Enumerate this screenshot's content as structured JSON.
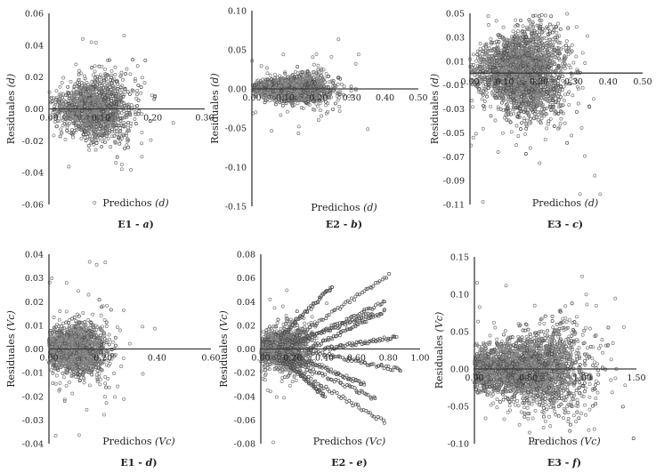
{
  "chart_data": [
    {
      "id": "p1",
      "type": "scatter",
      "ylabel_main": "Residuales",
      "ylabel_unit": "(d)",
      "xlabel_main": "Predichos",
      "xlabel_unit": "(d)",
      "caption_main": "E1 - ",
      "caption_letter": "a",
      "yticks": [
        "0.06",
        "0.04",
        "0.02",
        "0.00",
        "-0.02",
        "-0.04",
        "-0.06"
      ],
      "xticks": [
        "0.00",
        "0.10",
        "0.20",
        "0.30"
      ],
      "ylim": [
        -0.06,
        0.06
      ],
      "xlim": [
        0,
        0.3
      ],
      "cloud": {
        "n": 1400,
        "x_center": 0.09,
        "x_spread": 0.035,
        "y_spread": 0.009,
        "outliers": 30,
        "seed": 11
      }
    },
    {
      "id": "p2",
      "type": "scatter",
      "ylabel_main": "Residuales",
      "ylabel_unit": "(d)",
      "xlabel_main": "Predichos",
      "xlabel_unit": "(d)",
      "caption_main": "E2 - ",
      "caption_letter": "b",
      "yticks": [
        "0.10",
        "0.05",
        "0.00",
        "-0.05",
        "-0.10",
        "-0.15"
      ],
      "xticks": [
        "0.00",
        "0.10",
        "0.20",
        "0.30",
        "0.40",
        "0.50"
      ],
      "ylim": [
        -0.15,
        0.1
      ],
      "xlim": [
        0,
        0.5
      ],
      "cloud": {
        "n": 1800,
        "x_center": 0.12,
        "x_spread": 0.055,
        "y_spread": 0.008,
        "outliers": 45,
        "seed": 23
      }
    },
    {
      "id": "p3",
      "type": "scatter",
      "ylabel_main": "Residuales",
      "ylabel_unit": "(d)",
      "xlabel_main": "Predichos",
      "xlabel_unit": "(d)",
      "caption_main": "E3 - ",
      "caption_letter": "c",
      "yticks": [
        "0.05",
        "0.03",
        "0.01",
        "-0.01",
        "-0.03",
        "-0.05",
        "-0.07",
        "-0.09",
        "-0.11"
      ],
      "xticks": [
        "0.00",
        "0.10",
        "0.20",
        "0.30",
        "0.40",
        "0.50"
      ],
      "ylim": [
        -0.11,
        0.05
      ],
      "xlim": [
        0,
        0.5
      ],
      "cloud": {
        "n": 2600,
        "x_center": 0.15,
        "x_spread": 0.06,
        "y_spread": 0.016,
        "outliers": 60,
        "seed": 37
      }
    },
    {
      "id": "p4",
      "type": "scatter",
      "ylabel_main": "Residuales",
      "ylabel_unit": "(Vc)",
      "xlabel_main": "Predichos",
      "xlabel_unit": "(Vc)",
      "caption_main": "E1 - ",
      "caption_letter": "d",
      "yticks": [
        "0.04",
        "0.03",
        "0.02",
        "0.01",
        "0.00",
        "-0.01",
        "-0.02",
        "-0.03",
        "-0.04"
      ],
      "xticks": [
        "0.00",
        "0.20",
        "0.40",
        "0.60"
      ],
      "ylim": [
        -0.04,
        0.04
      ],
      "xlim": [
        0,
        0.6
      ],
      "cloud": {
        "n": 1500,
        "x_center": 0.09,
        "x_spread": 0.06,
        "y_spread": 0.006,
        "outliers": 80,
        "seed": 41
      }
    },
    {
      "id": "p5",
      "type": "scatter",
      "ylabel_main": "Residuales",
      "ylabel_unit": "(Vc)",
      "xlabel_main": "Predichos",
      "xlabel_unit": "(Vc)",
      "caption_main": "E2 - ",
      "caption_letter": "e",
      "yticks": [
        "0.08",
        "0.06",
        "0.04",
        "0.02",
        "0.00",
        "-0.02",
        "-0.04",
        "-0.06",
        "-0.08"
      ],
      "xticks": [
        "0.00",
        "0.20",
        "0.40",
        "0.60",
        "0.80",
        "1.00"
      ],
      "ylim": [
        -0.08,
        0.08
      ],
      "xlim": [
        0,
        1.0
      ],
      "cloud": {
        "n": 1500,
        "x_center": 0.14,
        "x_spread": 0.08,
        "y_spread": 0.01,
        "outliers": 40,
        "seed": 53
      },
      "streaks": [
        {
          "x0": 0.1,
          "y0": 0.0,
          "x1": 0.8,
          "y1": 0.062
        },
        {
          "x0": 0.15,
          "y0": 0.0,
          "x1": 0.78,
          "y1": 0.04
        },
        {
          "x0": 0.2,
          "y0": 0.005,
          "x1": 0.7,
          "y1": 0.03
        },
        {
          "x0": 0.12,
          "y0": 0.01,
          "x1": 0.45,
          "y1": 0.053
        },
        {
          "x0": 0.3,
          "y0": 0.0,
          "x1": 0.78,
          "y1": 0.032
        },
        {
          "x0": 0.4,
          "y0": 0.0,
          "x1": 0.85,
          "y1": 0.01
        },
        {
          "x0": 0.05,
          "y0": -0.005,
          "x1": 0.78,
          "y1": -0.062
        },
        {
          "x0": 0.1,
          "y0": -0.005,
          "x1": 0.72,
          "y1": -0.042
        },
        {
          "x0": 0.2,
          "y0": -0.005,
          "x1": 0.65,
          "y1": -0.03
        },
        {
          "x0": 0.15,
          "y0": -0.01,
          "x1": 0.4,
          "y1": -0.04
        },
        {
          "x0": 0.3,
          "y0": -0.002,
          "x1": 0.88,
          "y1": -0.018
        }
      ]
    },
    {
      "id": "p6",
      "type": "scatter",
      "ylabel_main": "Residuales",
      "ylabel_unit": "(Vc)",
      "xlabel_main": "Predichos",
      "xlabel_unit": "(Vc)",
      "caption_main": "E3 - ",
      "caption_letter": "f",
      "yticks": [
        "0.15",
        "0.10",
        "0.05",
        "0.00",
        "-0.05",
        "-0.10"
      ],
      "xticks": [
        "0.00",
        "0.50",
        "1.00",
        "1.50"
      ],
      "ylim": [
        -0.1,
        0.15
      ],
      "xlim": [
        0,
        1.5
      ],
      "cloud": {
        "n": 2600,
        "x_center": 0.45,
        "x_spread": 0.3,
        "y_spread": 0.02,
        "outliers": 60,
        "seed": 67
      }
    }
  ]
}
